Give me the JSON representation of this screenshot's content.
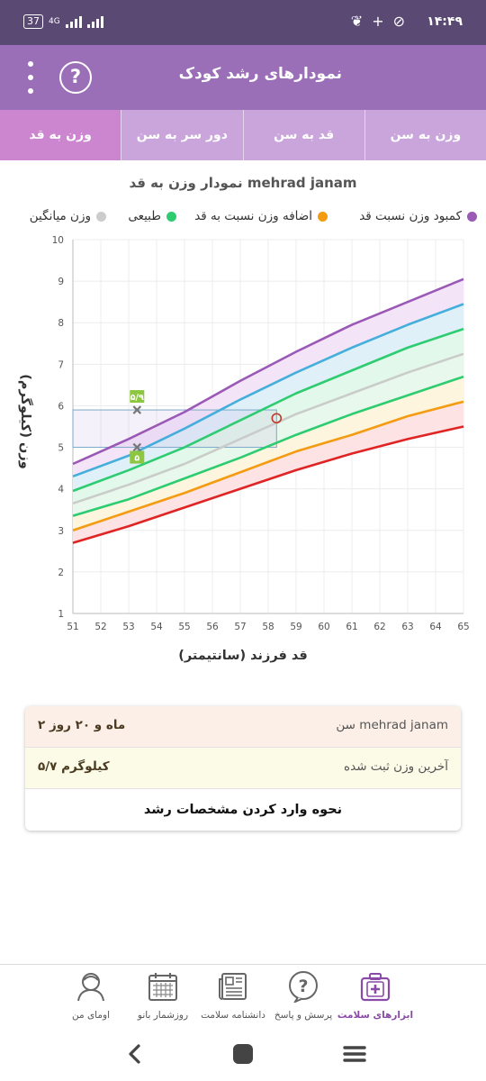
{
  "status_bar": {
    "time": "۱۴:۴۹",
    "battery": "37",
    "network": "4G"
  },
  "app_bar": {
    "title": "نمودارهای رشد کودک",
    "help_label": "?"
  },
  "tabs": [
    {
      "label": "وزن به سن",
      "active": false
    },
    {
      "label": "قد به سن",
      "active": false
    },
    {
      "label": "دور سر به سن",
      "active": false
    },
    {
      "label": "وزن به قد",
      "active": true
    }
  ],
  "chart": {
    "title": "نمودار وزن به قد mehrad janam",
    "xlabel": "قد فرزند (سانتیمتر)",
    "ylabel": "وزن (کیلوگرم)"
  },
  "legend": [
    {
      "label": "کمبود وزن نسبت قد",
      "color": "#9b59b6"
    },
    {
      "label": "اضافه وزن نسبت به قد",
      "color": "#f39c12"
    },
    {
      "label": "طبیعی",
      "color": "#2ecc71"
    },
    {
      "label": "وزن میانگین",
      "color": "#cccccc"
    }
  ],
  "chart_data": {
    "type": "line",
    "title": "نمودار وزن به قد mehrad janam",
    "xlabel": "قد فرزند (سانتیمتر)",
    "ylabel": "وزن (کیلوگرم)",
    "xlim": [
      51,
      65
    ],
    "ylim": [
      1,
      10
    ],
    "x_ticks": [
      "51",
      "52",
      "53",
      "54",
      "55",
      "56",
      "57",
      "58",
      "59",
      "60",
      "61",
      "62",
      "63",
      "64",
      "65"
    ],
    "y_ticks": [
      "1",
      "2",
      "3",
      "4",
      "5",
      "6",
      "7",
      "8",
      "9",
      "10"
    ],
    "grid": true,
    "x": [
      51,
      53,
      55,
      57,
      59,
      61,
      63,
      65
    ],
    "series": [
      {
        "color": "#9b59b6",
        "values": [
          4.6,
          5.2,
          5.85,
          6.6,
          7.3,
          7.95,
          8.5,
          9.05
        ]
      },
      {
        "color": "#45aedb",
        "values": [
          4.3,
          4.8,
          5.45,
          6.15,
          6.8,
          7.4,
          7.95,
          8.45
        ]
      },
      {
        "color": "#2ecc71",
        "values": [
          3.95,
          4.45,
          5.0,
          5.65,
          6.3,
          6.85,
          7.4,
          7.85
        ]
      },
      {
        "color": "#c9ccc9",
        "values": [
          3.65,
          4.1,
          4.6,
          5.2,
          5.8,
          6.3,
          6.8,
          7.25
        ]
      },
      {
        "color": "#2ecc71",
        "values": [
          3.35,
          3.75,
          4.25,
          4.75,
          5.3,
          5.8,
          6.25,
          6.7
        ]
      },
      {
        "color": "#f39c12",
        "values": [
          3.0,
          3.45,
          3.9,
          4.4,
          4.9,
          5.3,
          5.75,
          6.1
        ]
      },
      {
        "color": "#e02424",
        "values": [
          2.7,
          3.1,
          3.55,
          4.0,
          4.45,
          4.85,
          5.2,
          5.5
        ]
      }
    ],
    "band_colors": [
      "#f4e4f8",
      "#dff0f9",
      "#e2f8ea",
      "#e8f8ec",
      "#fdf5dd",
      "#fde3e3"
    ],
    "child_point": {
      "x": 58.3,
      "y": 5.7
    },
    "highlight_range": {
      "x_from": 51,
      "x_to": 58.3,
      "y_from": 5.0,
      "y_to": 5.9
    },
    "markers": [
      {
        "x": 53.3,
        "y": 5.9,
        "label": "۵/۹"
      },
      {
        "x": 53.3,
        "y": 5.0,
        "label": "۵"
      }
    ]
  },
  "info_card": {
    "age_label": "سن mehrad janam",
    "age_value": "۲ ماه و ۲۰ روز",
    "weight_label": "آخرین وزن ثبت شده",
    "weight_value": "۵/۷ کیلوگرم",
    "guide_label": "نحوه وارد کردن مشخصات رشد"
  },
  "bottom_nav": [
    {
      "label": "ابزارهای سلامت",
      "icon": "medical-kit-icon",
      "active": true
    },
    {
      "label": "پرسش و پاسخ",
      "icon": "question-bubble-icon",
      "active": false
    },
    {
      "label": "دانشنامه سلامت",
      "icon": "newspaper-icon",
      "active": false
    },
    {
      "label": "روزشمار بانو",
      "icon": "calendar-icon",
      "active": false
    },
    {
      "label": "اومای من",
      "icon": "user-avatar-icon",
      "active": false
    }
  ]
}
